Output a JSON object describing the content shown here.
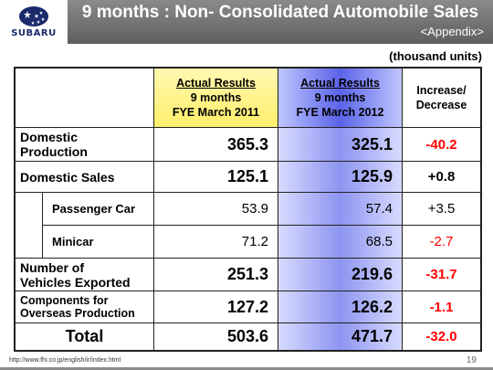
{
  "header": {
    "logo_text": "SUBARU",
    "title": "9 months : Non- Consolidated Automobile Sales",
    "subtitle": "<Appendix>"
  },
  "units": "(thousand units)",
  "columns": {
    "fy2011": {
      "line1": "Actual Results",
      "line2": "9 months",
      "line3": "FYE March 2011"
    },
    "fy2012": {
      "line1": "Actual Results",
      "line2": "9 months",
      "line3": "FYE March 2012"
    },
    "change": {
      "line1": "Increase/",
      "line2": "Decrease"
    }
  },
  "rows": [
    {
      "label_line1": "Domestic",
      "label_line2": "Production",
      "fy2011": "365.3",
      "fy2012": "325.1",
      "change": "-40.2"
    },
    {
      "label": "Domestic Sales",
      "fy2011": "125.1",
      "fy2012": "125.9",
      "change": "+0.8"
    },
    {
      "label": "Passenger Car",
      "fy2011": "53.9",
      "fy2012": "57.4",
      "change": "+3.5"
    },
    {
      "label": "Minicar",
      "fy2011": "71.2",
      "fy2012": "68.5",
      "change": "-2.7"
    },
    {
      "label_line1": "Number of",
      "label_line2": "Vehicles Exported",
      "fy2011": "251.3",
      "fy2012": "219.6",
      "change": "-31.7"
    },
    {
      "label_line1": "Components for",
      "label_line2": "Overseas Production",
      "fy2011": "127.2",
      "fy2012": "126.2",
      "change": "-1.1"
    },
    {
      "label": "Total",
      "fy2011": "503.6",
      "fy2012": "471.7",
      "change": "-32.0"
    }
  ],
  "footer": {
    "url": "http://www.fhi.co.jp/english/ir/index.html",
    "page": "19"
  },
  "colors": {
    "negative": "#ff0000",
    "header_bar": "#6e6e6e",
    "fy2011_header": "#ffef6b",
    "fy2012_column": "#5a63e8"
  }
}
